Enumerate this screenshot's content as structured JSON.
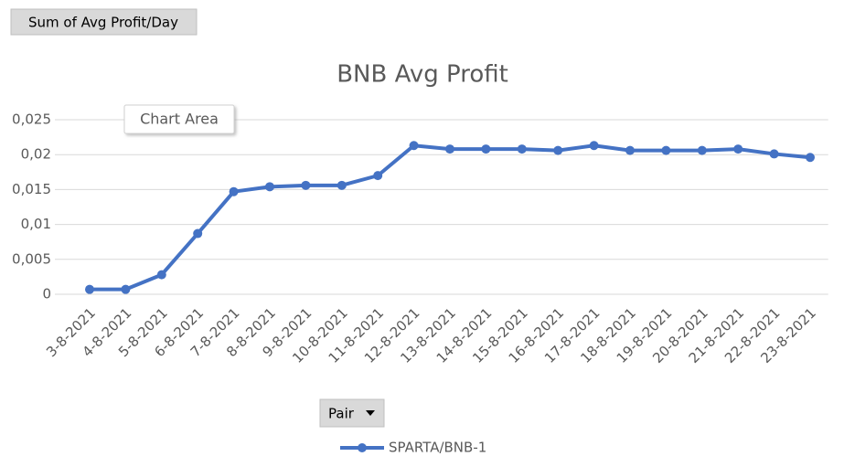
{
  "filter_button": "Sum of Avg Profit/Day",
  "tooltip": "Chart Area",
  "axis_button": "Pair",
  "chart_data": {
    "type": "line",
    "title": "BNB Avg Profit",
    "categories": [
      "3-8-2021",
      "4-8-2021",
      "5-8-2021",
      "6-8-2021",
      "7-8-2021",
      "8-8-2021",
      "9-8-2021",
      "10-8-2021",
      "11-8-2021",
      "12-8-2021",
      "13-8-2021",
      "14-8-2021",
      "15-8-2021",
      "16-8-2021",
      "17-8-2021",
      "18-8-2021",
      "19-8-2021",
      "20-8-2021",
      "21-8-2021",
      "22-8-2021",
      "23-8-2021"
    ],
    "series": [
      {
        "name": "SPARTA/BNB-1",
        "color": "#4472c4",
        "values": [
          0.0007,
          0.0007,
          0.0028,
          0.0087,
          0.0147,
          0.0154,
          0.0156,
          0.0156,
          0.017,
          0.0213,
          0.0208,
          0.0208,
          0.0208,
          0.0206,
          0.0213,
          0.0206,
          0.0206,
          0.0206,
          0.0208,
          0.0201,
          0.0196
        ]
      }
    ],
    "ylim": [
      0,
      0.025
    ],
    "yticks": [
      0,
      {
        "value": 0.005,
        "label": "0,005"
      },
      {
        "value": 0.01,
        "label": "0,01"
      },
      {
        "value": 0.015,
        "label": "0,015"
      },
      {
        "value": 0.02,
        "label": "0,02"
      },
      {
        "value": 0.025,
        "label": "0,025"
      }
    ],
    "grid": true,
    "legend": "bottom"
  }
}
